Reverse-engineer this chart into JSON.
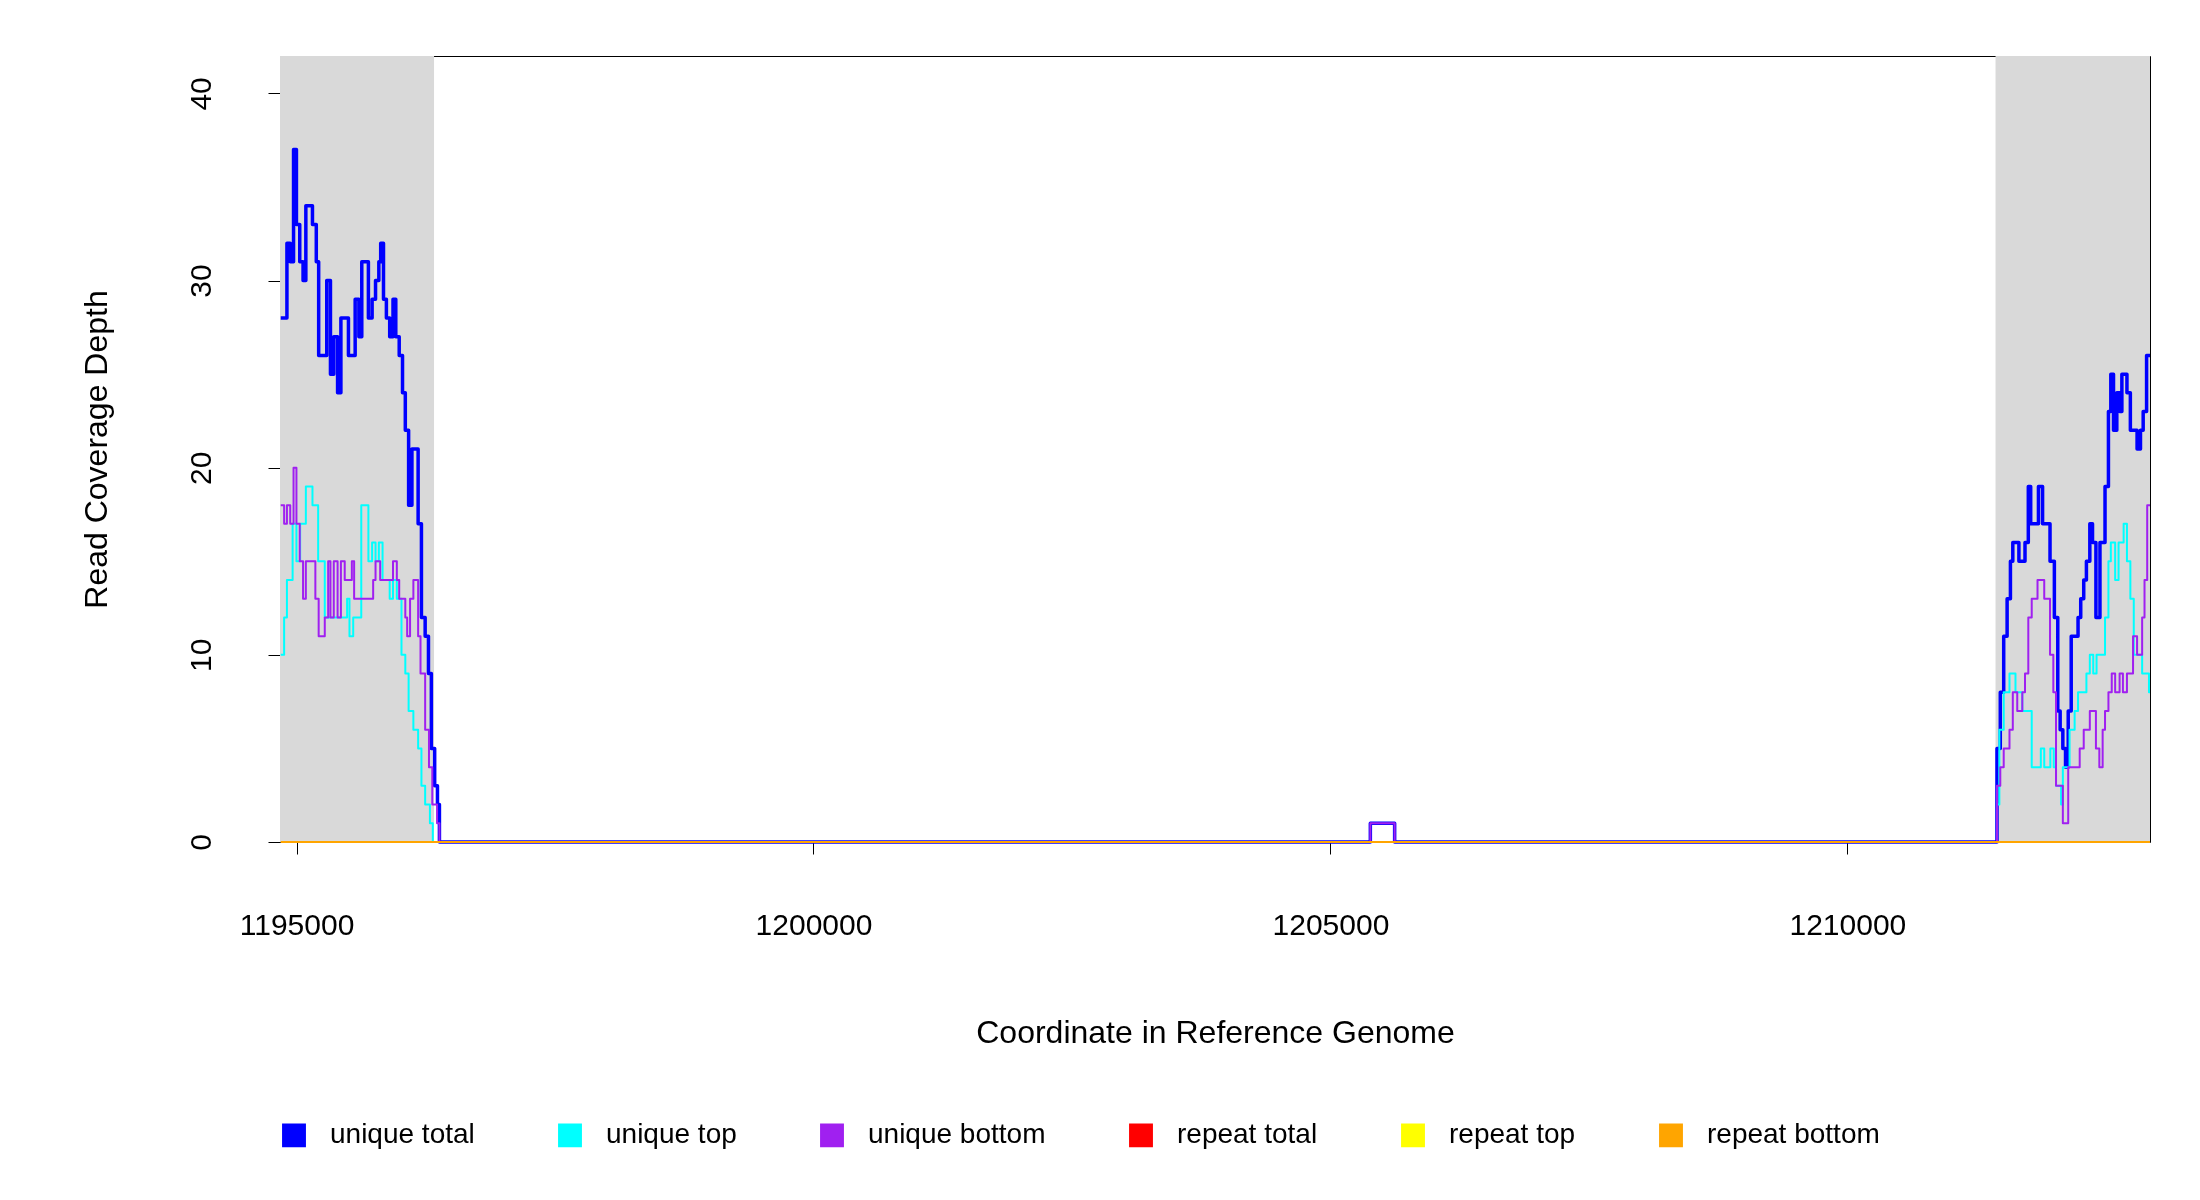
{
  "chart_data": {
    "type": "step",
    "xlabel": "Coordinate in Reference Genome",
    "ylabel": "Read Coverage Depth",
    "xlim": [
      1194840,
      1212927
    ],
    "ylim": [
      0,
      42
    ],
    "xticks": [
      1195000,
      1200000,
      1205000,
      1210000
    ],
    "yticks": [
      0,
      10,
      20,
      30,
      40
    ],
    "grid": false,
    "legend": "bottom",
    "marker": "none",
    "line_style": "solid",
    "bands": [
      {
        "axis": "x",
        "from": 1194840,
        "to": 1196330,
        "color": "#d9d9d9"
      },
      {
        "axis": "x",
        "from": 1211433,
        "to": 1212927,
        "color": "#d9d9d9"
      }
    ],
    "series": [
      {
        "name": "unique total",
        "color": "#0000ff",
        "x": [
          1194847,
          1194907,
          1194939,
          1194971,
          1194999,
          1195031,
          1195063,
          1195090,
          1195154,
          1195191,
          1195214,
          1195292,
          1195328,
          1195360,
          1195397,
          1195429,
          1195502,
          1195567,
          1195603,
          1195631,
          1195695,
          1195731,
          1195764,
          1195796,
          1195814,
          1195841,
          1195869,
          1195901,
          1195933,
          1195960,
          1195993,
          1196025,
          1196052,
          1196084,
          1196116,
          1196176,
          1196208,
          1196244,
          1196276,
          1196304,
          1196336,
          1196363,
          1196382,
          1205386,
          1205621,
          1211447,
          1211479,
          1211512,
          1211545,
          1211577,
          1211600,
          1211659,
          1211718,
          1211750,
          1211773,
          1211848,
          1211888,
          1211960,
          1212002,
          1212035,
          1212058,
          1212084,
          1212110,
          1212136,
          1212165,
          1212231,
          1212257,
          1212286,
          1212312,
          1212345,
          1212371,
          1212404,
          1212443,
          1212492,
          1212525,
          1212548,
          1212574,
          1212606,
          1212633,
          1212655,
          1212704,
          1212737,
          1212802,
          1212835,
          1212861,
          1212894,
          1212927
        ],
        "values": [
          28,
          32,
          31,
          37,
          33,
          31,
          30,
          34,
          33,
          31,
          26,
          30,
          25,
          27,
          24,
          28,
          26,
          29,
          27,
          31,
          28,
          29,
          30,
          31,
          32,
          29,
          28,
          27,
          29,
          27,
          26,
          24,
          22,
          18,
          21,
          17,
          12,
          11,
          9,
          5,
          3,
          2,
          0,
          1,
          0,
          5,
          8,
          11,
          13,
          15,
          16,
          15,
          16,
          19,
          17,
          19,
          17,
          15,
          12,
          7,
          6,
          5,
          4,
          7,
          11,
          12,
          13,
          14,
          15,
          17,
          16,
          12,
          16,
          19,
          23,
          25,
          22,
          24,
          23,
          25,
          24,
          22,
          21,
          22,
          23,
          26,
          26
        ]
      },
      {
        "name": "unique top",
        "color": "#00ffff",
        "x": [
          1194847,
          1194880,
          1194907,
          1194962,
          1194999,
          1195035,
          1195090,
          1195154,
          1195209,
          1195273,
          1195489,
          1195512,
          1195548,
          1195626,
          1195695,
          1195731,
          1195764,
          1195796,
          1195832,
          1195901,
          1195933,
          1195970,
          1196015,
          1196052,
          1196084,
          1196130,
          1196176,
          1196208,
          1196244,
          1196290,
          1196318,
          1211447,
          1211470,
          1211512,
          1211568,
          1211626,
          1211692,
          1211783,
          1211871,
          1211904,
          1211963,
          1211996,
          1212018,
          1212067,
          1212084,
          1212149,
          1212198,
          1212231,
          1212312,
          1212345,
          1212378,
          1212410,
          1212492,
          1212525,
          1212548,
          1212590,
          1212623,
          1212672,
          1212704,
          1212737,
          1212770,
          1212851,
          1212917,
          1212927
        ],
        "values": [
          10,
          12,
          14,
          17,
          15,
          17,
          19,
          18,
          15,
          12,
          13,
          11,
          12,
          18,
          15,
          16,
          15,
          16,
          14,
          13,
          14,
          13,
          10,
          9,
          7,
          6,
          5,
          3,
          2,
          1,
          0,
          2,
          6,
          8,
          9,
          8,
          7,
          4,
          5,
          4,
          5,
          4,
          3,
          2,
          4,
          6,
          7,
          8,
          9,
          10,
          9,
          10,
          12,
          15,
          16,
          14,
          16,
          17,
          15,
          13,
          10,
          9,
          8,
          8
        ]
      },
      {
        "name": "unique bottom",
        "color": "#a020f0",
        "x": [
          1194847,
          1194880,
          1194907,
          1194939,
          1194971,
          1194999,
          1195031,
          1195063,
          1195090,
          1195182,
          1195214,
          1195273,
          1195306,
          1195328,
          1195360,
          1195397,
          1195429,
          1195466,
          1195535,
          1195557,
          1195741,
          1195764,
          1195809,
          1195933,
          1195970,
          1195993,
          1196052,
          1196070,
          1196098,
          1196130,
          1196176,
          1196199,
          1196244,
          1196281,
          1196313,
          1196359,
          1196382,
          1205386,
          1205621,
          1211447,
          1211479,
          1211512,
          1211568,
          1211600,
          1211643,
          1211692,
          1211718,
          1211750,
          1211783,
          1211839,
          1211904,
          1211960,
          1211992,
          1212018,
          1212084,
          1212136,
          1212247,
          1212286,
          1212345,
          1212404,
          1212437,
          1212469,
          1212492,
          1212525,
          1212557,
          1212590,
          1212633,
          1212665,
          1212704,
          1212763,
          1212802,
          1212851,
          1212874,
          1212900,
          1212927
        ],
        "values": [
          18,
          17,
          18,
          17,
          20,
          17,
          15,
          13,
          15,
          13,
          11,
          12,
          15,
          12,
          15,
          12,
          15,
          14,
          15,
          13,
          14,
          15,
          14,
          15,
          14,
          13,
          12,
          11,
          13,
          14,
          11,
          9,
          6,
          4,
          2,
          1,
          0,
          1,
          0,
          3,
          4,
          5,
          6,
          8,
          7,
          8,
          9,
          12,
          13,
          14,
          13,
          10,
          8,
          3,
          1,
          4,
          5,
          6,
          7,
          5,
          4,
          6,
          7,
          8,
          9,
          8,
          9,
          8,
          9,
          11,
          10,
          12,
          14,
          18,
          18
        ]
      },
      {
        "name": "repeat total",
        "color": "#ff0000"
      },
      {
        "name": "repeat top",
        "color": "#ffff00"
      },
      {
        "name": "repeat bottom",
        "color": "#ffa500",
        "x": [
          1194847,
          1212927
        ],
        "values": [
          0,
          0
        ]
      }
    ]
  }
}
